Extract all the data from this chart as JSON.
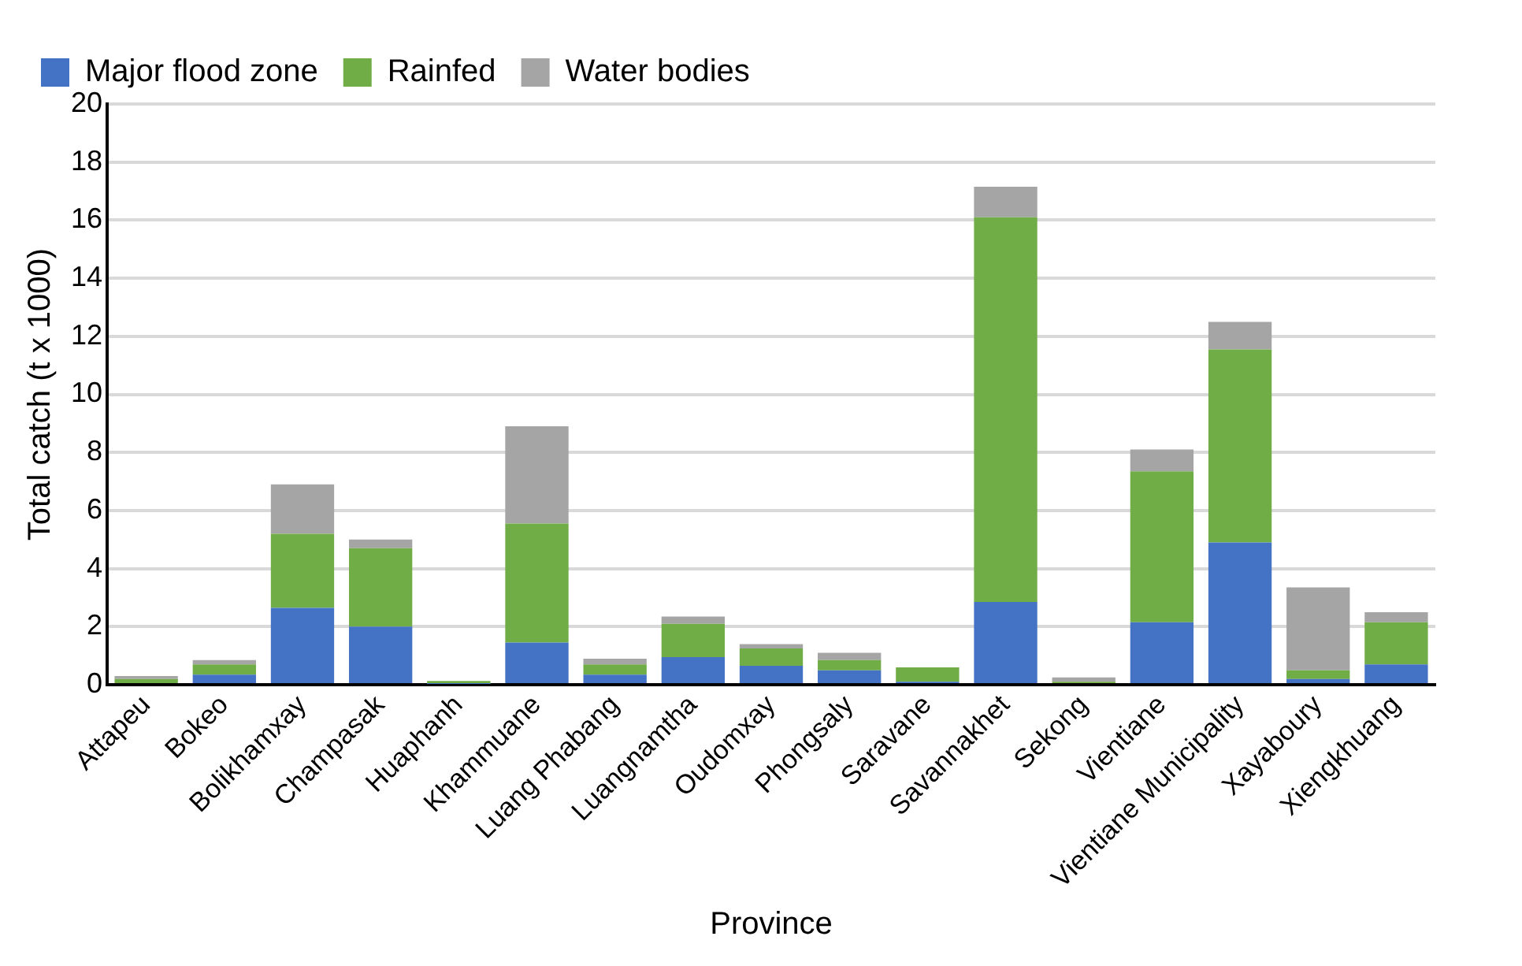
{
  "chart_data": {
    "type": "bar",
    "stacked": true,
    "xlabel": "Province",
    "ylabel": "Total catch (t x 1000)",
    "categories": [
      "Attapeu",
      "Bokeo",
      "Bolikhamxay",
      "Champasak",
      "Huaphanh",
      "Khammuane",
      "Luang Phabang",
      "Luangnamtha",
      "Oudomxay",
      "Phongsaly",
      "Saravane",
      "Savannakhet",
      "Sekong",
      "Vientiane",
      "Vientiane Municipality",
      "Xayaboury",
      "Xiengkhuang"
    ],
    "series": [
      {
        "name": "Major flood zone",
        "color": "#4472c4",
        "values": [
          null,
          0.35,
          2.65,
          2.0,
          0.03,
          1.45,
          0.35,
          0.95,
          0.65,
          0.5,
          0.1,
          2.85,
          null,
          2.15,
          4.9,
          0.2,
          0.7
        ]
      },
      {
        "name": "Rainfed",
        "color": "#70ad47",
        "values": [
          0.2,
          0.35,
          2.55,
          2.7,
          0.1,
          4.1,
          0.35,
          1.15,
          0.6,
          0.35,
          0.5,
          13.25,
          0.1,
          5.2,
          6.65,
          0.3,
          1.45
        ]
      },
      {
        "name": "Water bodies",
        "color": "#a5a5a5",
        "values": [
          0.1,
          0.15,
          1.7,
          0.3,
          null,
          3.35,
          0.2,
          0.25,
          0.15,
          0.25,
          null,
          1.05,
          0.15,
          0.75,
          0.95,
          2.85,
          0.35
        ]
      }
    ],
    "ylim": [
      0,
      20
    ],
    "yticks": [
      0,
      2,
      4,
      6,
      8,
      10,
      12,
      14,
      16,
      18,
      20
    ],
    "grid": "y",
    "legend": "top left"
  }
}
